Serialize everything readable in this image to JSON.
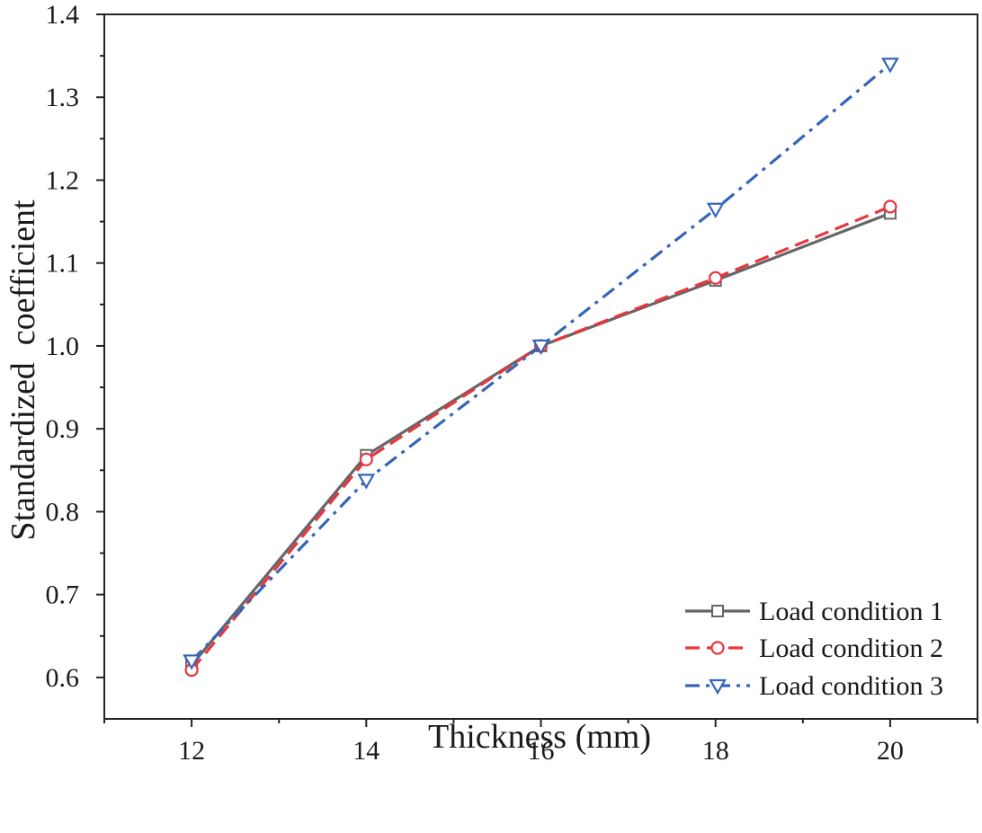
{
  "chart_data": {
    "type": "line",
    "title": "",
    "xlabel": "Thickness (mm)",
    "ylabel": "Standardized  coefficient",
    "xlim": [
      11,
      21
    ],
    "ylim": [
      0.55,
      1.4
    ],
    "x_ticks": [
      12,
      14,
      16,
      18,
      20
    ],
    "x_tick_labels": [
      "12",
      "14",
      "16",
      "18",
      "20"
    ],
    "y_ticks": [
      0.6,
      0.7,
      0.8,
      0.9,
      1.0,
      1.1,
      1.2,
      1.3,
      1.4
    ],
    "y_tick_labels": [
      "0.6",
      "0.7",
      "0.8",
      "0.9",
      "1.0",
      "1.1",
      "1.2",
      "1.3",
      "1.4"
    ],
    "grid": false,
    "legend_position": "bottom-right",
    "x": [
      12,
      14,
      16,
      18,
      20
    ],
    "series": [
      {
        "name": "Load condition 1",
        "values": [
          0.615,
          0.868,
          1.0,
          1.079,
          1.16
        ],
        "color": "#666666",
        "marker": "square",
        "line_style": "solid"
      },
      {
        "name": "Load condition 2",
        "values": [
          0.609,
          0.863,
          1.0,
          1.082,
          1.168
        ],
        "color": "#e8363f",
        "marker": "circle",
        "line_style": "dashed"
      },
      {
        "name": "Load condition 3",
        "values": [
          0.62,
          0.838,
          1.0,
          1.165,
          1.34
        ],
        "color": "#3565b7",
        "marker": "triangle-down",
        "line_style": "dash-dot"
      }
    ]
  }
}
